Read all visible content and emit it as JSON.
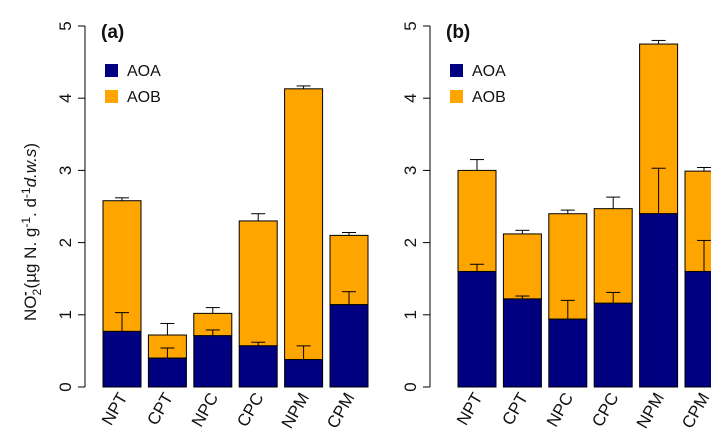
{
  "chart_data": [
    {
      "type": "bar",
      "stacked": true,
      "title": "(a)",
      "categories": [
        "NPT",
        "CPT",
        "NPC",
        "CPC",
        "NPM",
        "CPM"
      ],
      "series": [
        {
          "name": "AOA",
          "color": "#000080",
          "values": [
            0.77,
            0.4,
            0.71,
            0.57,
            0.38,
            1.14
          ],
          "error": [
            1.03,
            0.54,
            0.79,
            0.62,
            0.57,
            1.32
          ]
        },
        {
          "name": "AOB",
          "color": "#FFA500",
          "values": [
            1.81,
            0.32,
            0.31,
            1.73,
            3.75,
            0.96
          ],
          "error_top": [
            2.62,
            0.88,
            1.1,
            2.4,
            4.17,
            2.14
          ]
        }
      ],
      "ylim": [
        0,
        5
      ],
      "yticks": [
        "0",
        "1",
        "2",
        "3",
        "4",
        "5"
      ],
      "legend": "top-left"
    },
    {
      "type": "bar",
      "stacked": true,
      "title": "(b)",
      "categories": [
        "NPT",
        "CPT",
        "NPC",
        "CPC",
        "NPM",
        "CPM"
      ],
      "series": [
        {
          "name": "AOA",
          "color": "#000080",
          "values": [
            1.6,
            1.22,
            0.94,
            1.16,
            2.4,
            1.6
          ],
          "error": [
            1.7,
            1.26,
            1.2,
            1.31,
            3.03,
            2.03
          ]
        },
        {
          "name": "AOB",
          "color": "#FFA500",
          "values": [
            1.4,
            0.9,
            1.46,
            1.31,
            2.35,
            1.39
          ],
          "error_top": [
            3.15,
            2.17,
            2.45,
            2.63,
            4.8,
            3.04
          ]
        }
      ],
      "ylim": [
        0,
        5
      ],
      "yticks": [
        "0",
        "1",
        "2",
        "3",
        "4",
        "5"
      ],
      "legend": "top-left"
    }
  ],
  "ylabel": {
    "prefix": "NO",
    "sub": "2",
    "sup": "-",
    "unit_a": "(µg N. g",
    "exp1": "-1",
    "unit_b": ". d",
    "exp2": "-1",
    "italic": "d.w.s",
    "close": ")"
  }
}
